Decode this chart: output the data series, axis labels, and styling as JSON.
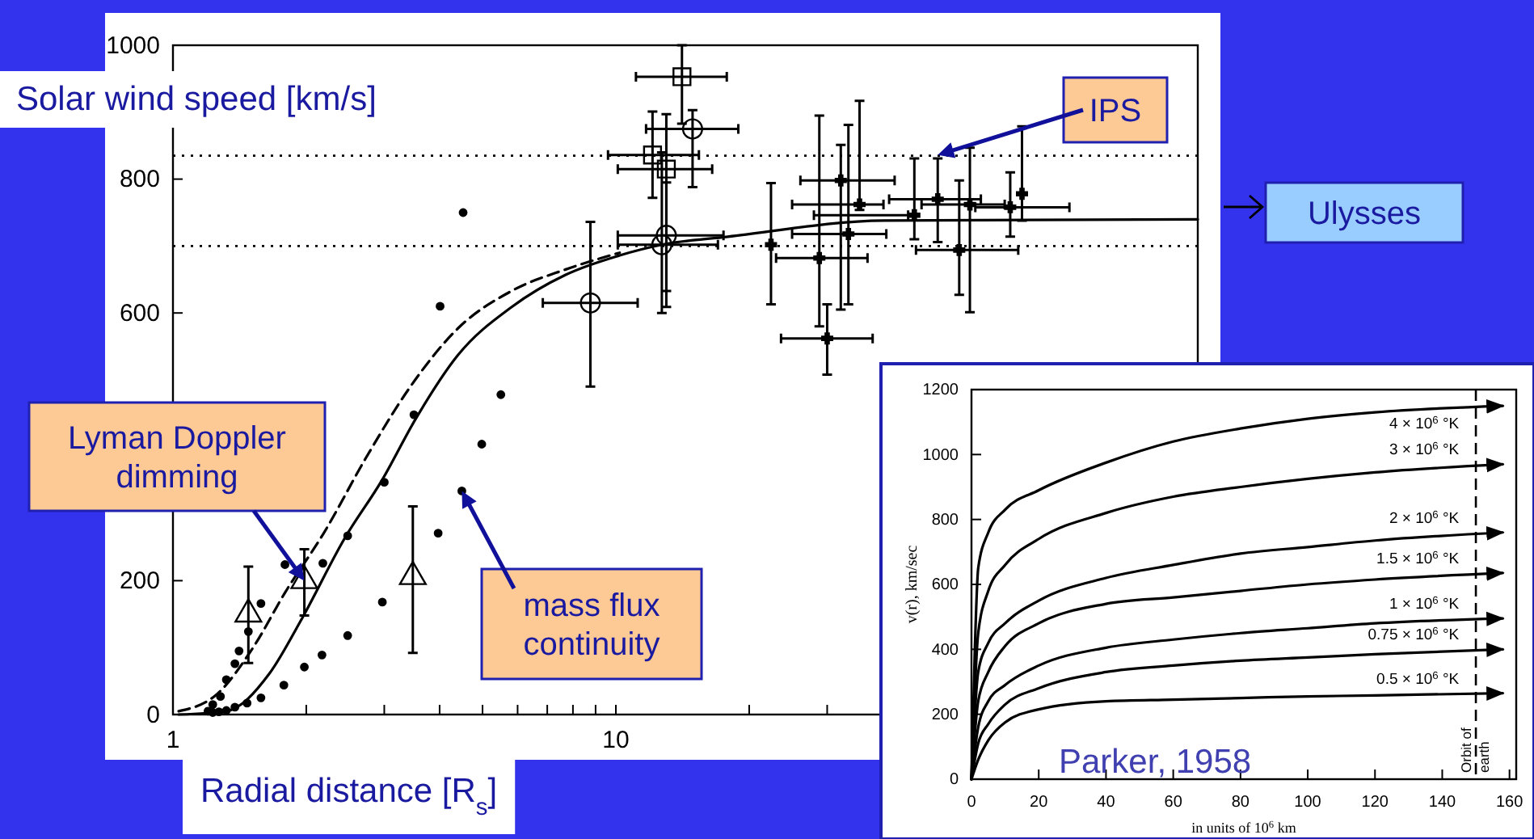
{
  "chart_data": [
    {
      "type": "scatter",
      "xlabel": "Radial distance [R$_{s}$]",
      "ylabel": "Solar wind speed [km/s]",
      "log": "x",
      "xlim": [
        1,
        206
      ],
      "ylim": [
        0,
        1000
      ],
      "xticks": [
        1,
        {
          "value": 2,
          "label": null
        },
        {
          "value": 3,
          "label": null
        },
        {
          "value": 4,
          "label": null
        },
        {
          "value": 5,
          "label": null
        },
        {
          "value": 6,
          "label": null
        },
        {
          "value": 7,
          "label": null
        },
        {
          "value": 8,
          "label": null
        },
        {
          "value": 9,
          "label": null
        },
        10,
        {
          "value": 20,
          "label": null
        },
        {
          "value": 30,
          "label": null
        },
        {
          "value": 40,
          "label": null
        },
        {
          "value": 50,
          "label": null
        }
      ],
      "yticks": [
        0,
        200,
        {
          "value": 400,
          "label": null
        },
        600,
        800,
        1000
      ],
      "grid": false,
      "legend": false,
      "ref_lines": [
        {
          "axis": "y",
          "value": 835,
          "line_style": "dotted",
          "color": "#000000"
        },
        {
          "axis": "y",
          "value": 700,
          "line_style": "dotted",
          "color": "#000000"
        }
      ],
      "series": [
        {
          "type": "line",
          "color": "#000000",
          "line_style": "solid",
          "marker": "none",
          "x": [
            1.03,
            1.32,
            1.65,
            1.95,
            2.44,
            2.97,
            3.52,
            4.4,
            5.82,
            7.7,
            10.2,
            12.7,
            17.9,
            40.3,
            206
          ],
          "values": [
            0,
            5,
            61,
            142,
            263,
            351,
            440,
            537,
            609,
            657,
            686,
            702,
            714,
            738,
            740
          ]
        },
        {
          "type": "line",
          "color": "#000000",
          "line_style": "dashed",
          "marker": "none",
          "x": [
            1.03,
            1.25,
            1.52,
            1.79,
            2.19,
            2.73,
            3.42,
            4.4,
            5.82,
            7.7,
            10.2
          ],
          "values": [
            5,
            29,
            101,
            182,
            271,
            384,
            488,
            577,
            633,
            665,
            690
          ]
        },
        {
          "color": "#000000",
          "marker": "circle",
          "x": [
            4.52,
            4.01,
            3.5,
            5.5,
            4.98,
            4.49,
            3.97,
            2.97,
            2.48,
            2.17,
            1.98,
            1.78,
            1.58,
            1.47,
            1.38,
            1.32,
            1.27,
            1.23,
            3.0,
            2.48,
            2.18,
            1.79,
            1.58,
            1.48,
            1.41,
            1.38,
            1.32,
            1.28,
            1.23,
            1.2
          ],
          "values": [
            750,
            610,
            448,
            478,
            404,
            334,
            271,
            168,
            118,
            89,
            71,
            44,
            25,
            17,
            11,
            6,
            4,
            3,
            347,
            267,
            226,
            224,
            166,
            124,
            95,
            76,
            52,
            27,
            15,
            5
          ]
        },
        {
          "color": "#000000",
          "marker": "triangle",
          "x": [
            1.48,
            1.98,
            3.48
          ],
          "values": [
            150,
            200,
            206
          ],
          "errors": [
            [
              77,
              221
            ],
            [
              148,
              247
            ],
            [
              92,
              311
            ]
          ]
        },
        {
          "color": "#000000",
          "marker": "circle",
          "x": [
            8.76,
            14.9,
            13.0,
            12.7
          ],
          "values": [
            615,
            875,
            716,
            702
          ],
          "errors": [
            [
              490,
              736
            ],
            [
              788,
              903
            ],
            [
              609,
              795
            ],
            [
              600,
              840
            ]
          ],
          "xerrors": [
            [
              6.84,
              11.2
            ],
            [
              11.7,
              18.9
            ],
            [
              10.1,
              17.5
            ],
            [
              10.1,
              17.0
            ]
          ]
        },
        {
          "color": "#000000",
          "marker": "square",
          "x": [
            14.1,
            12.1,
            13.0
          ],
          "values": [
            953,
            836,
            815
          ],
          "errors": [
            [
              883,
              1000
            ],
            [
              772,
              901
            ],
            [
              633,
              897
            ]
          ],
          "xerrors": [
            [
              11.1,
              17.8
            ],
            [
              9.6,
              15.4
            ],
            [
              10.1,
              16.5
            ]
          ]
        },
        {
          "color": "#000000",
          "marker": "cross",
          "x": [
            28.8,
            30.0,
            32.2,
            33.5,
            35.5,
            22.4,
            53.3,
            63.0,
            77.7,
            82.6,
            59.6,
            47.2
          ],
          "values": [
            682,
            562,
            798,
            718,
            762,
            702,
            770,
            762,
            758,
            778,
            694,
            746
          ],
          "errors": [
            [
              580,
              895
            ],
            [
              508,
              613
            ],
            [
              605,
              851
            ],
            [
              613,
              881
            ],
            [
              754,
              917
            ],
            [
              613,
              794
            ],
            [
              706,
              831
            ],
            [
              601,
              847
            ],
            [
              714,
              810
            ],
            [
              738,
              879
            ],
            [
              627,
              798
            ],
            [
              710,
              831
            ]
          ],
          "xerrors": [
            [
              23.0,
              37.0
            ],
            [
              23.6,
              38.0
            ],
            [
              26.1,
              42.6
            ],
            [
              25.0,
              40.8
            ],
            [
              25.0,
              40.2
            ],
            null,
            [
              41.4,
              66.7
            ],
            [
              49.0,
              75.5
            ],
            [
              64.8,
              105.7
            ],
            null,
            [
              47.6,
              81.0
            ],
            [
              28.0,
              45.7
            ]
          ]
        }
      ],
      "annotations": [
        {
          "text": "Lyman Doppler dimming",
          "x": 1.98,
          "y": 200
        },
        {
          "text": "mass flux continuity",
          "x": 4.49,
          "y": 334
        },
        {
          "text": "IPS",
          "x": 53.3,
          "y": 836
        },
        "Ulysses"
      ]
    },
    {
      "type": "line",
      "xlabel": "in units of 10$^{6}$ km",
      "ylabel": "v(r), km/sec",
      "xlim": [
        0,
        162
      ],
      "ylim": [
        0,
        1200
      ],
      "xticks": [
        0,
        20,
        40,
        60,
        80,
        100,
        120,
        140,
        160
      ],
      "yticks": [
        0,
        200,
        400,
        600,
        800,
        1000,
        1200
      ],
      "grid": false,
      "legend": false,
      "marker": "none",
      "ref_lines": [
        {
          "axis": "x",
          "value": 150,
          "label": "Orbit of earth",
          "line_style": "dashed",
          "color": "#000000"
        }
      ],
      "series": [
        {
          "name": "4 × 10$^{6}$ °K",
          "color": "#000000",
          "x": [
            0,
            1,
            2,
            5,
            10,
            20,
            40,
            60,
            80,
            100,
            120,
            158
          ],
          "values": [
            0,
            400,
            650,
            760,
            830,
            890,
            975,
            1040,
            1080,
            1110,
            1130,
            1150
          ]
        },
        {
          "name": "3 × 10$^{6}$ °K",
          "color": "#000000",
          "x": [
            0,
            2,
            5,
            10,
            20,
            40,
            60,
            80,
            100,
            120,
            158
          ],
          "values": [
            0,
            450,
            580,
            660,
            740,
            820,
            870,
            900,
            925,
            945,
            970
          ]
        },
        {
          "name": "2 × 10$^{6}$ °K",
          "color": "#000000",
          "x": [
            0,
            2,
            5,
            10,
            20,
            40,
            60,
            80,
            100,
            120,
            158
          ],
          "values": [
            0,
            330,
            420,
            480,
            550,
            620,
            660,
            695,
            715,
            735,
            760
          ]
        },
        {
          "name": "1.5 × 10$^{6}$ °K",
          "color": "#000000",
          "x": [
            0,
            2,
            5,
            10,
            20,
            40,
            60,
            80,
            100,
            120,
            158
          ],
          "values": [
            0,
            240,
            330,
            410,
            480,
            540,
            560,
            580,
            600,
            615,
            635
          ]
        },
        {
          "name": "1 × 10$^{6}$ °K",
          "color": "#000000",
          "x": [
            0,
            2,
            5,
            10,
            20,
            40,
            60,
            80,
            100,
            120,
            158
          ],
          "values": [
            0,
            160,
            240,
            290,
            350,
            405,
            430,
            450,
            465,
            480,
            495
          ]
        },
        {
          "name": "0.75 × 10$^{6}$ °K",
          "color": "#000000",
          "x": [
            0,
            2,
            5,
            10,
            20,
            40,
            60,
            80,
            100,
            120,
            158
          ],
          "values": [
            0,
            110,
            170,
            230,
            280,
            330,
            350,
            365,
            375,
            385,
            400
          ]
        },
        {
          "name": "0.5 × 10$^{6}$ °K",
          "color": "#000000",
          "x": [
            0,
            2,
            5,
            10,
            20,
            40,
            60,
            80,
            100,
            120,
            158
          ],
          "values": [
            0,
            60,
            120,
            175,
            215,
            240,
            245,
            250,
            255,
            258,
            265
          ]
        }
      ],
      "annotations": [
        "Parker, 1958"
      ]
    }
  ]
}
